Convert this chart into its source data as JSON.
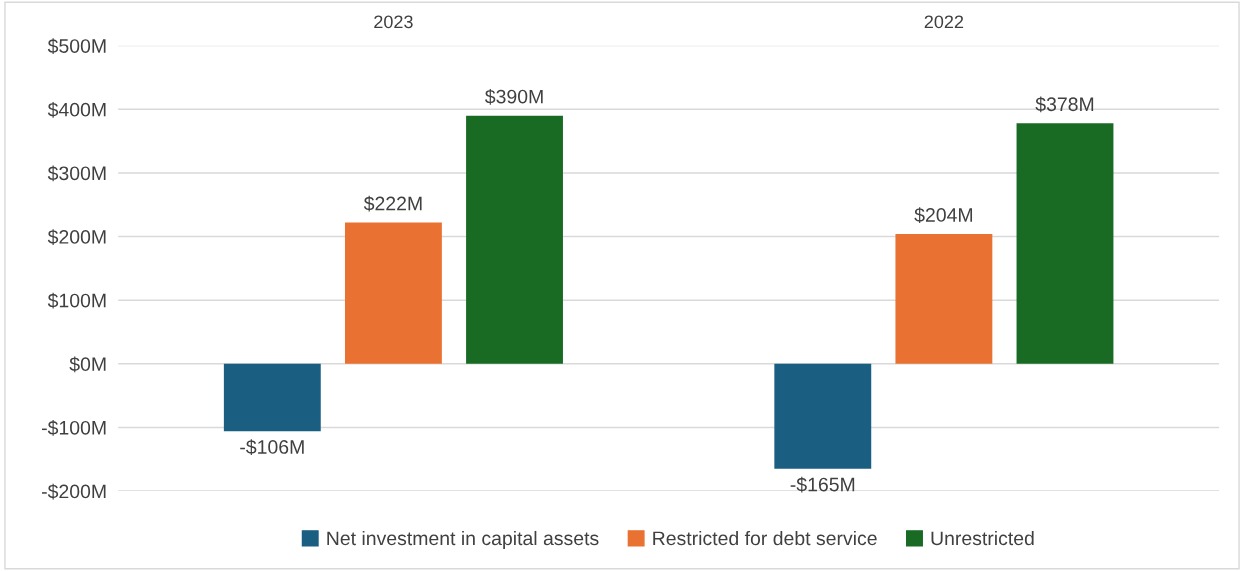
{
  "chart_data": {
    "type": "bar",
    "categories": [
      "2023",
      "2022"
    ],
    "series": [
      {
        "name": "Net investment in capital assets",
        "color": "#1a5f82",
        "values": [
          -106,
          -165
        ],
        "value_labels": [
          "-$106M",
          "-$165M"
        ]
      },
      {
        "name": "Restricted for debt service",
        "color": "#e97132",
        "values": [
          222,
          204
        ],
        "value_labels": [
          "$222M",
          "$204M"
        ]
      },
      {
        "name": "Unrestricted",
        "color": "#196b24",
        "values": [
          390,
          378
        ],
        "value_labels": [
          "$390M",
          "$378M"
        ]
      }
    ],
    "ylim": [
      -200,
      500
    ],
    "yticks": [
      {
        "value": -200,
        "label": "-$200M"
      },
      {
        "value": -100,
        "label": "-$100M"
      },
      {
        "value": 0,
        "label": "$0M"
      },
      {
        "value": 100,
        "label": "$100M"
      },
      {
        "value": 200,
        "label": "$200M"
      },
      {
        "value": 300,
        "label": "$300M"
      },
      {
        "value": 400,
        "label": "$400M"
      },
      {
        "value": 500,
        "label": "$500M"
      }
    ],
    "grid": "y",
    "legend": "bottom"
  }
}
